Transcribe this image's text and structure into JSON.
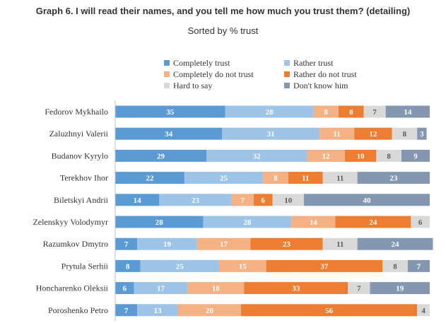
{
  "title": "Graph 6. I will read their names, and you tell me how much you trust them? (detailing)",
  "subtitle": "Sorted by % trust",
  "chart_data": {
    "type": "bar",
    "orientation": "horizontal",
    "stacked": true,
    "title": "Graph 6. I will read their names, and you tell me how much you trust them? (detailing)",
    "subtitle": "Sorted by % trust",
    "categories": [
      "Fedorov Mykhailo",
      "Zaluzhnyi Valerii",
      "Budanov Kyrylo",
      "Terekhov Ihor",
      "Biletskyi Andrii",
      "Zelenskyy Volodymyr",
      "Razumkov Dmytro",
      "Prytula Serhii",
      "Honcharenko Oleksii",
      "Poroshenko Petro"
    ],
    "series": [
      {
        "name": "Completely trust",
        "color": "#5b9bd5",
        "label_color": "#ffffff",
        "values": [
          35,
          34,
          29,
          22,
          14,
          28,
          7,
          8,
          6,
          7
        ]
      },
      {
        "name": "Rather trust",
        "color": "#9dc3e6",
        "label_color": "#ffffff",
        "values": [
          28,
          31,
          32,
          25,
          23,
          28,
          19,
          25,
          17,
          13
        ]
      },
      {
        "name": "Completely do not trust",
        "color": "#f4b183",
        "label_color": "#ffffff",
        "values": [
          8,
          11,
          12,
          8,
          7,
          14,
          17,
          15,
          18,
          20
        ]
      },
      {
        "name": "Rather do not trust",
        "color": "#ed7d31",
        "label_color": "#ffffff",
        "values": [
          8,
          12,
          10,
          11,
          6,
          24,
          23,
          37,
          33,
          56
        ]
      },
      {
        "name": "Hard to say",
        "color": "#d9d9d9",
        "label_color": "#595959",
        "values": [
          7,
          8,
          8,
          11,
          10,
          6,
          11,
          8,
          7,
          4
        ]
      },
      {
        "name": "Don't know him",
        "color": "#8497b0",
        "label_color": "#ffffff",
        "values": [
          14,
          3,
          9,
          23,
          40,
          0,
          24,
          7,
          19,
          0
        ]
      }
    ],
    "legend_order": [
      0,
      1,
      2,
      3,
      4,
      5
    ],
    "legend_position": "top",
    "xlim": [
      0,
      100
    ],
    "grid": false
  }
}
